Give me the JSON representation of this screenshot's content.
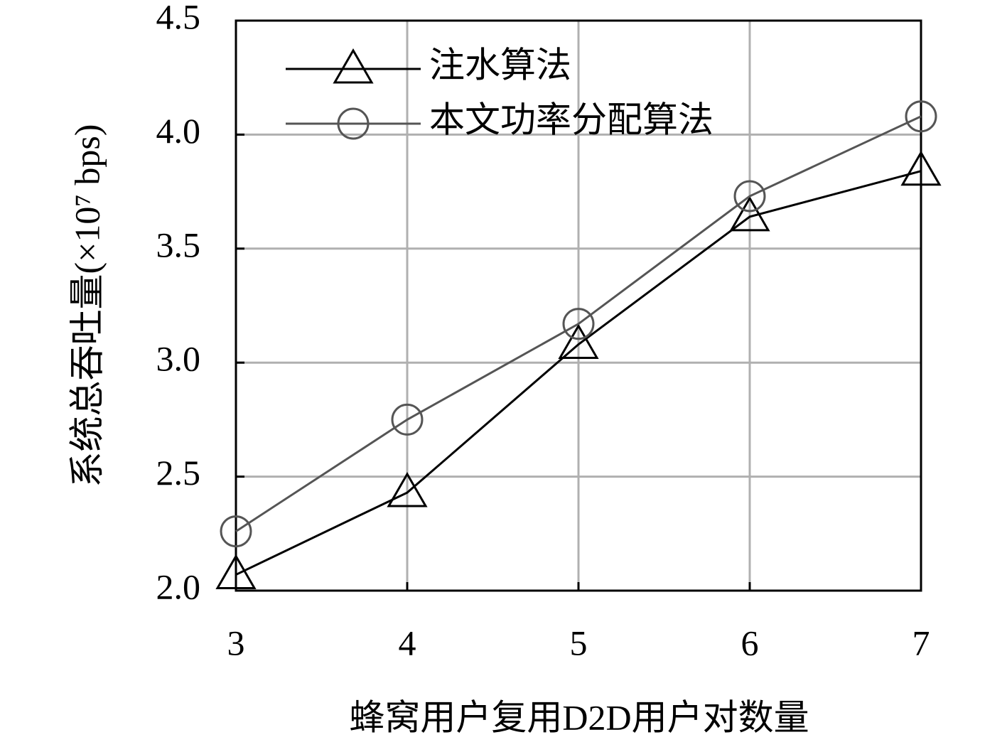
{
  "chart_data": {
    "type": "line",
    "xlabel": "蜂窝用户复用D2D用户对数量",
    "ylabel": "系统总吞吐量(×10⁷ bps)",
    "x": [
      3,
      4,
      5,
      6,
      7
    ],
    "xlim": [
      3,
      7
    ],
    "xticks": [
      3,
      4,
      5,
      6,
      7
    ],
    "ylim": [
      2,
      4.5
    ],
    "yticks": [
      {
        "value": 2,
        "label": "2.0"
      },
      {
        "value": 2.5,
        "label": "2.5"
      },
      {
        "value": 3,
        "label": "3.0"
      },
      {
        "value": 3.5,
        "label": "3.5"
      },
      {
        "value": 4,
        "label": "4.0"
      },
      {
        "value": 4.5,
        "label": "4.5"
      }
    ],
    "grid": true,
    "legend": "upper left",
    "series": [
      {
        "name": "注水算法",
        "color": "#000000",
        "marker": "triangle",
        "values": [
          2.07,
          2.43,
          3.08,
          3.64,
          3.84
        ]
      },
      {
        "name": "本文功率分配算法",
        "color": "#555555",
        "marker": "circle",
        "values": [
          2.26,
          2.75,
          3.17,
          3.73,
          4.08
        ]
      }
    ]
  }
}
